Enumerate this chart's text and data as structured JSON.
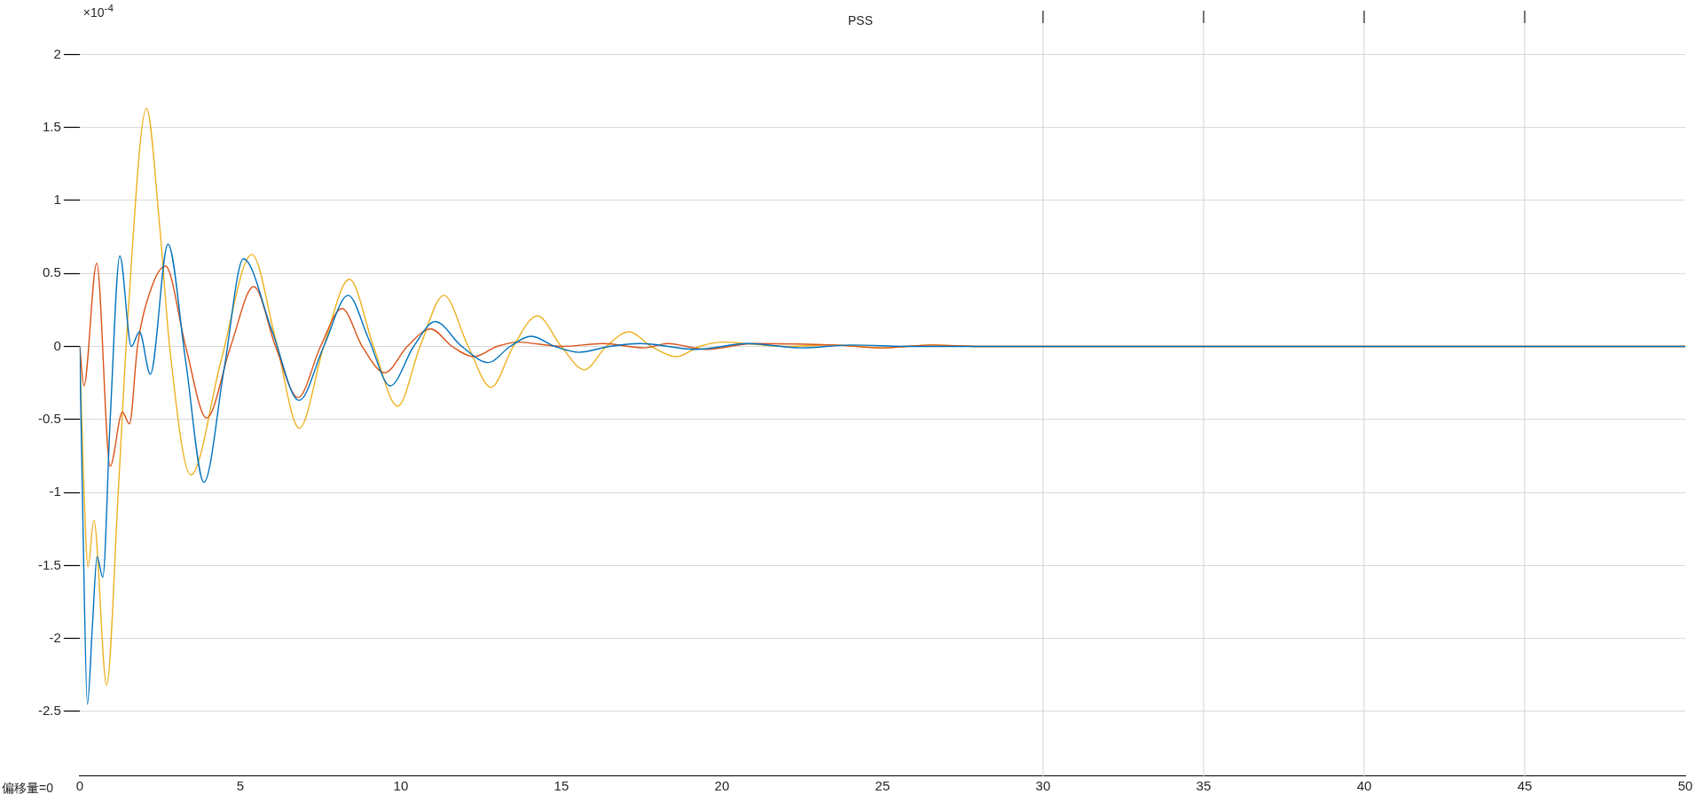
{
  "chart_data": {
    "type": "line",
    "title": "PSS",
    "annotations": [
      "×10$^{-4}$",
      "偏移量=0"
    ],
    "xlim": [
      0,
      50
    ],
    "xticks": [
      0,
      5,
      10,
      15,
      20,
      25,
      30,
      35,
      40,
      45,
      50
    ],
    "ylim": [
      -2.95,
      2.3
    ],
    "yticks": [
      -2.5,
      -2,
      -1.5,
      -1,
      -0.5,
      0,
      0.5,
      1,
      1.5,
      2
    ],
    "grid": "y",
    "legend": false,
    "marker": "none",
    "line_style": "solid",
    "ref_lines": [
      {
        "axis": "x",
        "value": 30,
        "color": "#d4d4d4"
      },
      {
        "axis": "x",
        "value": 35,
        "color": "#d4d4d4"
      },
      {
        "axis": "x",
        "value": 40,
        "color": "#d4d4d4"
      },
      {
        "axis": "x",
        "value": 45,
        "color": "#d4d4d4"
      }
    ],
    "series": [
      {
        "color": "#0072bd",
        "x": [
          0,
          0.1,
          0.24,
          0.4,
          0.54,
          0.72,
          0.95,
          1.25,
          1.61,
          1.86,
          2.2,
          2.75,
          3.3,
          3.87,
          4.5,
          5.1,
          6.0,
          6.83,
          7.6,
          8.36,
          9.0,
          9.67,
          10.4,
          11.07,
          11.9,
          12.73,
          13.4,
          14.06,
          14.8,
          15.55,
          16.5,
          17.45,
          19.2,
          20.8,
          22.5,
          24,
          26,
          50
        ],
        "values": [
          0,
          -1.2,
          -2.45,
          -1.9,
          -1.44,
          -1.58,
          -0.5,
          0.62,
          0.0,
          0.1,
          -0.19,
          0.7,
          -0.1,
          -0.93,
          -0.15,
          0.6,
          0.1,
          -0.37,
          0,
          0.35,
          0.05,
          -0.27,
          0,
          0.17,
          0,
          -0.11,
          0,
          0.07,
          0,
          -0.04,
          0,
          0.02,
          -0.02,
          0.02,
          -0.01,
          0.01,
          0,
          0
        ]
      },
      {
        "color": "#d95319",
        "x": [
          0,
          0.13,
          0.53,
          0.95,
          1.33,
          1.55,
          1.8,
          2.2,
          2.67,
          3.3,
          3.95,
          4.7,
          5.42,
          6.1,
          6.8,
          7.5,
          8.17,
          8.8,
          9.5,
          10.2,
          10.93,
          11.6,
          12.27,
          13.0,
          13.65,
          15,
          16.3,
          17.6,
          18.3,
          19.5,
          21,
          23.5,
          25,
          26.5,
          28,
          50
        ],
        "values": [
          0,
          -0.27,
          0.57,
          -0.82,
          -0.45,
          -0.53,
          0,
          0.38,
          0.55,
          0.0,
          -0.49,
          0,
          0.41,
          0,
          -0.35,
          0,
          0.26,
          0,
          -0.18,
          0,
          0.12,
          0,
          -0.07,
          0,
          0.03,
          0,
          0.02,
          -0.01,
          0.02,
          -0.02,
          0.02,
          0.01,
          -0.01,
          0.01,
          0,
          0
        ]
      },
      {
        "color": "#edb120",
        "x": [
          0,
          0.12,
          0.26,
          0.44,
          0.84,
          1.2,
          1.5,
          2.08,
          2.5,
          2.8,
          3.46,
          4.4,
          5.36,
          6.1,
          6.84,
          7.6,
          8.4,
          9.15,
          9.9,
          10.6,
          11.34,
          12.1,
          12.81,
          13.5,
          14.25,
          15.0,
          15.71,
          16.4,
          17.11,
          17.8,
          18.58,
          19.3,
          20.02,
          22,
          23.5,
          25,
          26.5,
          28,
          50
        ],
        "values": [
          0,
          -0.9,
          -1.51,
          -1.19,
          -2.32,
          -1.0,
          0.2,
          1.63,
          0.8,
          0,
          -0.88,
          -0.1,
          0.63,
          0.05,
          -0.56,
          0,
          0.46,
          0,
          -0.41,
          0,
          0.35,
          0,
          -0.28,
          0,
          0.21,
          0,
          -0.16,
          0,
          0.1,
          0,
          -0.07,
          0,
          0.03,
          0,
          0.01,
          -0.01,
          0.01,
          0,
          0
        ]
      }
    ]
  }
}
